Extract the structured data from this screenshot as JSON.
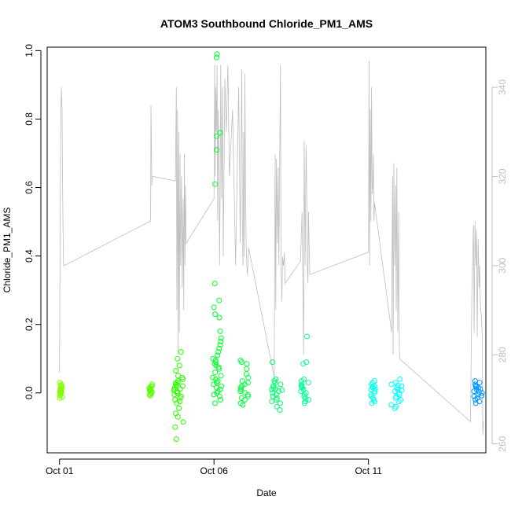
{
  "chart_data": {
    "type": "scatter",
    "title": "ATOM3 Southbound Chloride_PM1_AMS",
    "xlabel": "Date",
    "ylabel": "Chloride_PM1_AMS",
    "x_ticks": [
      "Oct 01",
      "Oct 06",
      "Oct 11"
    ],
    "x_tick_days": [
      1,
      6,
      11
    ],
    "xlim_days": [
      0.6,
      14.8
    ],
    "ylim": [
      -0.175,
      1.01
    ],
    "y_ticks": [
      "0.0",
      "0.2",
      "0.4",
      "0.6",
      "0.8",
      "1.0"
    ],
    "y2_ticks": [
      "260",
      "280",
      "300",
      "320",
      "340"
    ],
    "y2lim": [
      258,
      349
    ],
    "grid": false,
    "legend": "none",
    "colors": {
      "axis": "#000000",
      "secondary_axis": "#bebebe",
      "altitude_line": "#bebebe"
    },
    "series": [
      {
        "marker": "open-circle",
        "axis": "left",
        "clusters": [
          {
            "day": 1.05,
            "spread": 0.05,
            "color": "#80ff00",
            "values": [
              0.0,
              0.005,
              -0.008,
              0.012,
              0.018,
              0.025,
              0.03,
              -0.012,
              0.002,
              0.008,
              -0.005,
              0.015,
              0.02,
              -0.015,
              0.01,
              0.0,
              0.022,
              0.004
            ]
          },
          {
            "day": 3.95,
            "spread": 0.05,
            "color": "#55ff00",
            "values": [
              0.0,
              0.005,
              0.01,
              0.015,
              0.02,
              0.025,
              -0.005,
              -0.008,
              0.003,
              0.008,
              0.012,
              0.018,
              -0.002
            ]
          },
          {
            "day": 4.85,
            "spread": 0.16,
            "color": "#2bff00",
            "values": [
              -0.135,
              -0.1,
              -0.085,
              -0.07,
              -0.06,
              -0.045,
              -0.03,
              -0.02,
              -0.01,
              0.0,
              0.005,
              0.01,
              0.02,
              0.03,
              0.045,
              0.05,
              0.065,
              0.08,
              0.1,
              0.12,
              -0.015,
              0.015,
              0.025,
              0.035,
              -0.005,
              0.008,
              0.0,
              0.012,
              -0.025,
              0.04,
              0.02,
              0.03
            ]
          },
          {
            "day": 6.1,
            "spread": 0.14,
            "color": "#00ff2b",
            "values": [
              0.99,
              0.98,
              0.76,
              0.75,
              0.71,
              0.61,
              0.32,
              0.27,
              0.25,
              0.23,
              0.22,
              0.18,
              0.16,
              0.15,
              0.14,
              0.13,
              0.12,
              0.11,
              0.1,
              0.095,
              0.09,
              0.085,
              0.08,
              0.075,
              0.07,
              0.06,
              0.05,
              0.045,
              0.04,
              0.035,
              0.03,
              0.025,
              0.02,
              0.015,
              0.01,
              0.005,
              0.0,
              -0.005,
              -0.01,
              -0.02,
              -0.03
            ]
          },
          {
            "day": 7.0,
            "spread": 0.15,
            "color": "#00ff40",
            "values": [
              0.095,
              0.09,
              0.085,
              0.07,
              0.055,
              0.045,
              0.035,
              0.03,
              0.02,
              0.015,
              0.01,
              0.005,
              0.0,
              -0.005,
              -0.01,
              -0.015,
              -0.02,
              -0.03,
              -0.035,
              0.025
            ]
          },
          {
            "day": 8.05,
            "spread": 0.18,
            "color": "#00ff6a",
            "values": [
              0.09,
              0.04,
              0.035,
              0.03,
              0.025,
              0.02,
              0.015,
              0.01,
              0.005,
              0.0,
              -0.005,
              -0.01,
              -0.015,
              -0.02,
              -0.025,
              -0.03,
              -0.04,
              -0.05,
              0.012,
              0.008
            ]
          },
          {
            "day": 8.95,
            "spread": 0.14,
            "color": "#00ff95",
            "values": [
              0.165,
              0.09,
              0.085,
              0.04,
              0.035,
              0.03,
              0.025,
              0.02,
              0.015,
              0.01,
              0.005,
              0.0,
              -0.005,
              -0.01,
              -0.015,
              -0.02,
              -0.025,
              -0.03,
              0.018
            ]
          },
          {
            "day": 11.1,
            "spread": 0.12,
            "color": "#00ffea",
            "values": [
              0.035,
              0.03,
              0.025,
              0.02,
              0.015,
              0.01,
              0.005,
              0.0,
              -0.005,
              -0.01,
              -0.015,
              -0.02,
              -0.025,
              -0.03,
              0.012,
              0.018
            ]
          },
          {
            "day": 11.9,
            "spread": 0.18,
            "color": "#00ffff",
            "values": [
              0.04,
              0.03,
              0.025,
              0.02,
              0.015,
              0.01,
              0.005,
              0.0,
              -0.005,
              -0.01,
              -0.015,
              -0.02,
              -0.025,
              -0.035,
              -0.045,
              -0.04,
              0.008,
              0.022
            ]
          },
          {
            "day": 14.55,
            "spread": 0.14,
            "color": "#0095ff",
            "values": [
              0.035,
              0.03,
              0.025,
              0.02,
              0.015,
              0.01,
              0.005,
              0.0,
              -0.005,
              -0.01,
              -0.015,
              -0.02,
              -0.025,
              -0.03,
              0.012,
              0.018,
              -0.008,
              0.004
            ]
          }
        ]
      },
      {
        "type": "line",
        "axis": "right",
        "color": "#bebebe",
        "x_days": [
          1.0,
          1.02,
          1.04,
          1.06,
          1.08,
          1.1,
          1.12,
          1.13,
          1.15,
          3.95,
          3.96,
          3.97,
          3.99,
          4.0,
          4.75,
          4.78,
          4.8,
          4.82,
          4.84,
          4.86,
          4.88,
          4.9,
          4.92,
          4.95,
          4.97,
          5.0,
          5.02,
          5.04,
          5.06,
          5.08,
          5.1,
          6.0,
          6.02,
          6.04,
          6.06,
          6.08,
          6.1,
          6.12,
          6.14,
          6.16,
          6.18,
          6.2,
          6.22,
          6.25,
          6.28,
          6.3,
          6.35,
          6.4,
          6.45,
          6.5,
          6.6,
          6.7,
          6.8,
          6.85,
          6.9,
          6.92,
          6.94,
          6.96,
          6.98,
          7.0,
          7.02,
          7.04,
          7.06,
          7.08,
          7.1,
          7.12,
          7.95,
          7.98,
          8.0,
          8.02,
          8.05,
          8.08,
          8.1,
          8.12,
          8.15,
          8.17,
          8.2,
          8.22,
          8.25,
          8.28,
          8.3,
          8.8,
          8.85,
          8.9,
          8.92,
          8.95,
          8.98,
          9.0,
          9.02,
          9.04,
          9.06,
          9.08,
          9.1,
          11.0,
          11.02,
          11.04,
          11.06,
          11.08,
          11.1,
          11.12,
          11.14,
          11.16,
          11.18,
          11.2,
          11.75,
          11.78,
          11.8,
          11.82,
          11.85,
          11.88,
          11.9,
          11.92,
          11.95,
          11.98,
          12.0,
          12.02,
          14.3,
          14.35,
          14.4,
          14.42,
          14.45,
          14.48,
          14.5,
          14.52,
          14.55,
          14.58,
          14.6,
          14.62,
          14.65,
          14.68,
          14.7,
          14.72
        ],
        "values": [
          276,
          310,
          332,
          340,
          335,
          318,
          305,
          300,
          300,
          310,
          336,
          330,
          318,
          320,
          319,
          340,
          290,
          335,
          280,
          330,
          285,
          325,
          300,
          320,
          295,
          315,
          290,
          325,
          300,
          318,
          305,
          315,
          345,
          320,
          340,
          330,
          345,
          310,
          335,
          325,
          300,
          318,
          345,
          315,
          340,
          302,
          342,
          330,
          345,
          320,
          335,
          300,
          340,
          305,
          344,
          310,
          300,
          330,
          302,
          343,
          318,
          305,
          300,
          298,
          300,
          304,
          275,
          325,
          290,
          324,
          305,
          322,
          300,
          318,
          345,
          300,
          292,
          302,
          300,
          303,
          296,
          301,
          312,
          280,
          328,
          300,
          327,
          318,
          300,
          296,
          312,
          305,
          298,
          303,
          346,
          300,
          335,
          310,
          340,
          316,
          318,
          325,
          310,
          314,
          285,
          320,
          280,
          323,
          300,
          318,
          290,
          322,
          285,
          312,
          281,
          279,
          265,
          295,
          309,
          285,
          310,
          300,
          308,
          284,
          306,
          295,
          300,
          292,
          289,
          285,
          262,
          265
        ]
      }
    ]
  }
}
